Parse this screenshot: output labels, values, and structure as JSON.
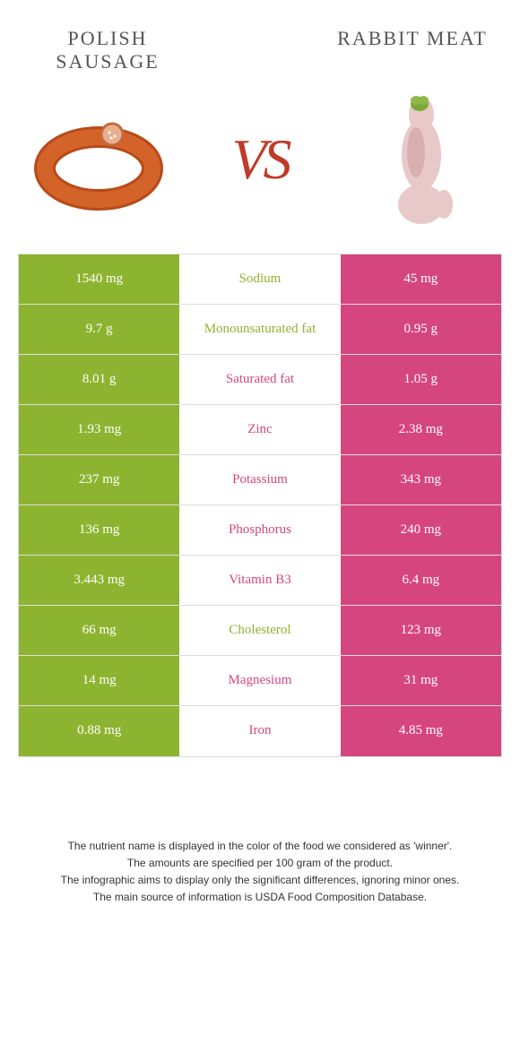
{
  "header": {
    "left_title": "POLISH SAUSAGE",
    "right_title": "RABBIT MEAT",
    "vs_label": "VS"
  },
  "colors": {
    "left_bg": "#8db430",
    "right_bg": "#d6467e",
    "mid_bg": "#ffffff",
    "border": "#dddddd",
    "left_win_text": "#8db430",
    "right_win_text": "#d6467e",
    "title_text": "#555555",
    "vs_text": "#c13a28"
  },
  "rows": [
    {
      "left": "1540 mg",
      "label": "Sodium",
      "right": "45 mg",
      "winner": "left"
    },
    {
      "left": "9.7 g",
      "label": "Monounsaturated fat",
      "right": "0.95 g",
      "winner": "left"
    },
    {
      "left": "8.01 g",
      "label": "Saturated fat",
      "right": "1.05 g",
      "winner": "right"
    },
    {
      "left": "1.93 mg",
      "label": "Zinc",
      "right": "2.38 mg",
      "winner": "right"
    },
    {
      "left": "237 mg",
      "label": "Potassium",
      "right": "343 mg",
      "winner": "right"
    },
    {
      "left": "136 mg",
      "label": "Phosphorus",
      "right": "240 mg",
      "winner": "right"
    },
    {
      "left": "3.443 mg",
      "label": "Vitamin B3",
      "right": "6.4 mg",
      "winner": "right"
    },
    {
      "left": "66 mg",
      "label": "Cholesterol",
      "right": "123 mg",
      "winner": "left"
    },
    {
      "left": "14 mg",
      "label": "Magnesium",
      "right": "31 mg",
      "winner": "right"
    },
    {
      "left": "0.88 mg",
      "label": "Iron",
      "right": "4.85 mg",
      "winner": "right"
    }
  ],
  "footer": {
    "line1": "The nutrient name is displayed in the color of the food we considered as 'winner'.",
    "line2": "The amounts are specified per 100 gram of the product.",
    "line3": "The infographic aims to display only the significant differences, ignoring minor ones.",
    "line4": "The main source of information is USDA Food Composition Database."
  }
}
